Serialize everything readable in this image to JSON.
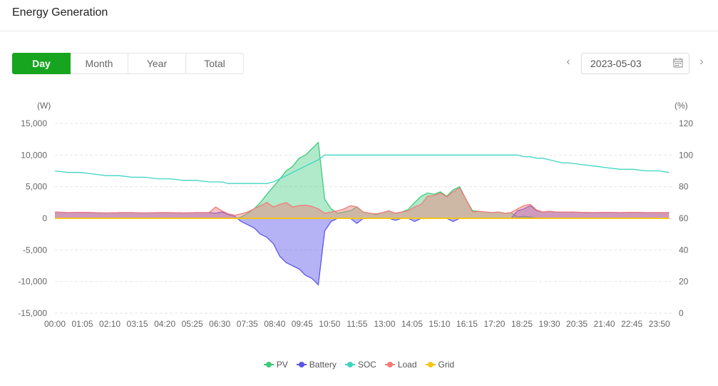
{
  "header": {
    "title": "Energy Generation"
  },
  "tabs": [
    {
      "label": "Day",
      "active": true
    },
    {
      "label": "Month",
      "active": false
    },
    {
      "label": "Year",
      "active": false
    },
    {
      "label": "Total",
      "active": false
    }
  ],
  "date_picker": {
    "value": "2023-05-03",
    "prev_icon": "chevron-left-icon",
    "next_icon": "chevron-right-icon",
    "calendar_icon": "calendar-icon"
  },
  "legend": [
    {
      "name": "PV",
      "color": "#3dcb7a"
    },
    {
      "name": "Battery",
      "color": "#5b57e8"
    },
    {
      "name": "SOC",
      "color": "#3fd4c4"
    },
    {
      "name": "Load",
      "color": "#f07c78"
    },
    {
      "name": "Grid",
      "color": "#f5c518"
    }
  ],
  "chart_data": {
    "type": "area",
    "left_unit": "(W)",
    "right_unit": "(%)",
    "ylim_left": [
      -15000,
      15000
    ],
    "yticks_left": [
      "15,000",
      "10,000",
      "5,000",
      "0",
      "-5,000",
      "-10,000",
      "-15,000"
    ],
    "ylim_right": [
      0,
      120
    ],
    "yticks_right": [
      "120",
      "100",
      "80",
      "60",
      "40",
      "20",
      "0"
    ],
    "x_tick_labels": [
      "00:00",
      "01:05",
      "02:10",
      "03:15",
      "04:20",
      "05:25",
      "06:30",
      "07:35",
      "08:40",
      "09:45",
      "10:50",
      "11:55",
      "13:00",
      "14:05",
      "15:10",
      "16:15",
      "17:20",
      "18:25",
      "19:30",
      "20:35",
      "21:40",
      "22:45",
      "23:50"
    ],
    "x_hours": [
      0,
      0.5,
      1,
      1.5,
      2,
      2.5,
      3,
      3.5,
      4,
      4.5,
      5,
      5.5,
      6,
      6.25,
      6.5,
      6.75,
      7,
      7.25,
      7.5,
      7.75,
      8,
      8.25,
      8.5,
      8.75,
      9,
      9.25,
      9.5,
      9.75,
      10,
      10.25,
      10.5,
      10.75,
      11,
      11.25,
      11.5,
      11.75,
      12,
      12.25,
      12.5,
      12.75,
      13,
      13.25,
      13.5,
      13.75,
      14,
      14.25,
      14.5,
      14.75,
      15,
      15.25,
      15.5,
      15.75,
      16,
      16.25,
      16.5,
      16.75,
      17,
      17.25,
      17.5,
      17.75,
      18,
      18.25,
      18.5,
      18.75,
      19,
      19.25,
      19.5,
      19.75,
      20,
      20.5,
      21,
      21.5,
      22,
      22.5,
      23,
      23.5,
      23.9
    ],
    "series": [
      {
        "name": "PV",
        "values": [
          0,
          0,
          0,
          0,
          0,
          0,
          0,
          0,
          0,
          0,
          0,
          0,
          0,
          0,
          0,
          0,
          0,
          200,
          800,
          1500,
          2500,
          3800,
          5000,
          6200,
          7500,
          8200,
          9500,
          10000,
          11000,
          12000,
          3000,
          1500,
          800,
          1000,
          1200,
          1800,
          1000,
          800,
          600,
          900,
          1200,
          800,
          1000,
          1400,
          2500,
          3500,
          4000,
          3800,
          4200,
          3500,
          4500,
          5000,
          3000,
          1200,
          1100,
          1000,
          900,
          1000,
          800,
          900,
          200,
          300,
          200,
          0,
          0,
          0,
          0,
          0,
          0,
          0,
          0,
          0,
          0,
          0,
          0,
          0,
          0
        ]
      },
      {
        "name": "Battery",
        "values": [
          1000,
          900,
          950,
          900,
          850,
          900,
          900,
          850,
          900,
          900,
          850,
          900,
          900,
          800,
          1000,
          600,
          300,
          -500,
          -1000,
          -1500,
          -2500,
          -3000,
          -4000,
          -6000,
          -7000,
          -7500,
          -8000,
          -9000,
          -9500,
          -10500,
          -2000,
          -500,
          0,
          0,
          0,
          -800,
          0,
          0,
          0,
          0,
          0,
          -300,
          0,
          0,
          -500,
          0,
          0,
          0,
          0,
          0,
          -500,
          0,
          0,
          0,
          0,
          0,
          0,
          0,
          0,
          0,
          1200,
          1500,
          2000,
          1200,
          1000,
          1100,
          1000,
          1000,
          1000,
          950,
          900,
          950,
          900,
          950,
          900,
          900,
          900
        ]
      },
      {
        "name": "SOC",
        "values": [
          90,
          89,
          89,
          88,
          87,
          87,
          86,
          86,
          85,
          85,
          84,
          84,
          83,
          83,
          83,
          82,
          82,
          82,
          82,
          82,
          82,
          82,
          83,
          85,
          87,
          89,
          91,
          93,
          95,
          97,
          100,
          100,
          100,
          100,
          100,
          100,
          100,
          100,
          100,
          100,
          100,
          100,
          100,
          100,
          100,
          100,
          100,
          100,
          100,
          100,
          100,
          100,
          100,
          100,
          100,
          100,
          100,
          100,
          100,
          100,
          100,
          99,
          99,
          98,
          98,
          97,
          96,
          95,
          95,
          94,
          93,
          92,
          91,
          91,
          90,
          90,
          89
        ]
      },
      {
        "name": "Load",
        "values": [
          1000,
          900,
          950,
          900,
          850,
          900,
          900,
          850,
          900,
          900,
          850,
          900,
          900,
          1800,
          1200,
          700,
          500,
          700,
          1000,
          1500,
          2000,
          2500,
          1800,
          2200,
          2500,
          1800,
          2000,
          2100,
          1900,
          1500,
          800,
          1000,
          1200,
          1500,
          2000,
          1800,
          1000,
          800,
          700,
          900,
          1200,
          800,
          1000,
          1200,
          1800,
          2200,
          3500,
          3600,
          4000,
          3400,
          4200,
          4800,
          3000,
          1000,
          1100,
          1000,
          900,
          1000,
          800,
          900,
          1500,
          2000,
          2200,
          1300,
          1000,
          1100,
          1000,
          1000,
          1000,
          950,
          900,
          950,
          900,
          950,
          900,
          900,
          900
        ]
      },
      {
        "name": "Grid",
        "values": [
          0,
          0,
          0,
          0,
          0,
          0,
          0,
          0,
          0,
          0,
          0,
          0,
          0,
          0,
          0,
          0,
          0,
          0,
          0,
          0,
          0,
          0,
          0,
          0,
          0,
          0,
          0,
          0,
          0,
          0,
          0,
          0,
          0,
          0,
          0,
          0,
          0,
          0,
          0,
          0,
          0,
          0,
          0,
          0,
          0,
          0,
          0,
          0,
          0,
          0,
          0,
          0,
          0,
          0,
          0,
          0,
          0,
          0,
          0,
          0,
          0,
          0,
          0,
          0,
          0,
          0,
          0,
          0,
          0,
          0,
          0,
          0,
          0,
          0,
          0,
          0,
          0
        ]
      }
    ],
    "grid": true,
    "legend_position": "bottom"
  }
}
